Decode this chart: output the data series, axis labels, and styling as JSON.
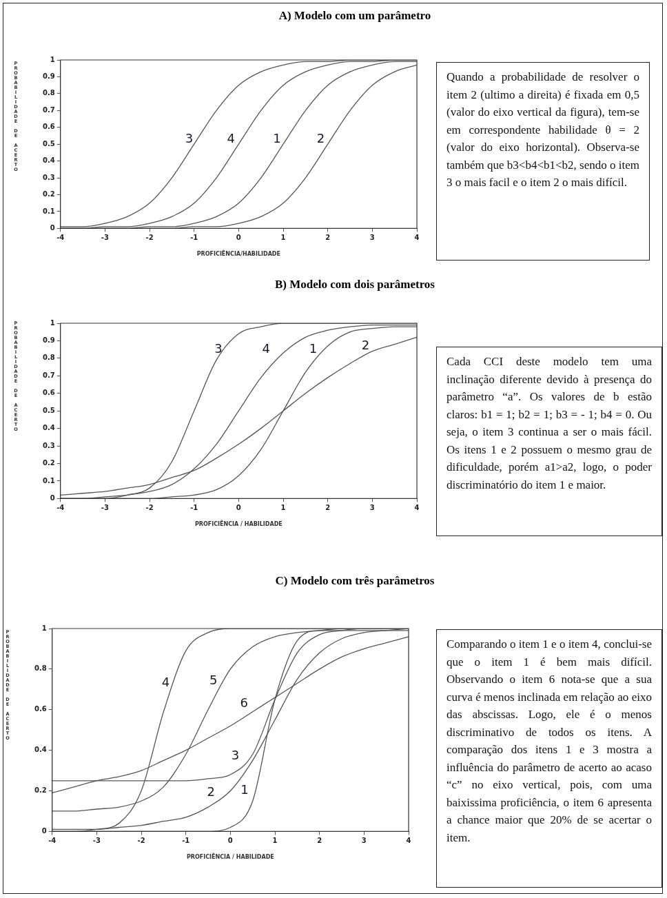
{
  "chart_data": [
    {
      "type": "line",
      "title": "A) Modelo com um parâmetro",
      "xlabel": "PROFICIÊNCIA/HABILIDADE",
      "ylabel": "PROBABILIDADE DE ACERTO",
      "x": [
        -4,
        -3.5,
        -3,
        -2.5,
        -2,
        -1.5,
        -1,
        -0.5,
        0,
        0.5,
        1,
        1.5,
        2,
        2.5,
        3,
        3.5,
        4
      ],
      "xlim": [
        -4,
        4
      ],
      "xticks": [
        -4,
        -3,
        -2,
        -1,
        0,
        1,
        2,
        3,
        4
      ],
      "ylim": [
        0,
        1
      ],
      "yticks": [
        0,
        0.1,
        0.2,
        0.3,
        0.4,
        0.5,
        0.6,
        0.7,
        0.8,
        0.9,
        1
      ],
      "grid": false,
      "legend": false,
      "marker": "none",
      "series": [
        {
          "name": "1",
          "color": "#555555",
          "values": [
            0,
            0,
            0,
            0,
            0.01,
            0.01,
            0.03,
            0.07,
            0.15,
            0.3,
            0.5,
            0.7,
            0.85,
            0.93,
            0.97,
            0.99,
            0.99
          ]
        },
        {
          "name": "2",
          "color": "#555555",
          "values": [
            0,
            0,
            0,
            0,
            0,
            0,
            0.01,
            0.01,
            0.03,
            0.07,
            0.15,
            0.3,
            0.5,
            0.7,
            0.85,
            0.93,
            0.97
          ]
        },
        {
          "name": "3",
          "color": "#555555",
          "values": [
            0.01,
            0.01,
            0.03,
            0.07,
            0.15,
            0.3,
            0.5,
            0.7,
            0.85,
            0.93,
            0.97,
            0.99,
            0.99,
            1,
            1,
            1,
            1
          ]
        },
        {
          "name": "4",
          "color": "#555555",
          "values": [
            0,
            0,
            0.01,
            0.01,
            0.03,
            0.07,
            0.15,
            0.3,
            0.5,
            0.7,
            0.85,
            0.93,
            0.97,
            0.99,
            0.99,
            1,
            1
          ]
        }
      ],
      "annotations": [
        "Quando a probabilidade de resolver o item 2 (ultimo a direita) é fixada em 0,5 (valor do eixo vertical da figura), tem-se em correspondente habilidade θ = 2 (valor do eixo horizontal). Observa-se também que b3<b4<b1<b2, sendo o item 3 o mais facil e o item 2 o mais difícil."
      ]
    },
    {
      "type": "line",
      "title": "B) Modelo com dois parâmetros",
      "xlabel": "PROFICIÊNCIA / HABILIDADE",
      "ylabel": "PROBABILIDADE DE ACERTO",
      "x": [
        -4,
        -3.5,
        -3,
        -2.5,
        -2,
        -1.5,
        -1,
        -0.5,
        0,
        0.5,
        1,
        1.5,
        2,
        2.5,
        3,
        3.5,
        4
      ],
      "xlim": [
        -4,
        4
      ],
      "xticks": [
        -4,
        -3,
        -2,
        -1,
        0,
        1,
        2,
        3,
        4
      ],
      "ylim": [
        0,
        1
      ],
      "yticks": [
        0,
        0.1,
        0.2,
        0.3,
        0.4,
        0.5,
        0.6,
        0.7,
        0.8,
        0.9,
        1
      ],
      "grid": false,
      "legend": false,
      "marker": "none",
      "series": [
        {
          "name": "1",
          "color": "#555555",
          "values": [
            0,
            0,
            0,
            0,
            0,
            0.01,
            0.02,
            0.05,
            0.13,
            0.28,
            0.5,
            0.72,
            0.87,
            0.95,
            0.97,
            0.98,
            0.98
          ]
        },
        {
          "name": "2",
          "color": "#555555",
          "values": [
            0.02,
            0.03,
            0.04,
            0.06,
            0.08,
            0.12,
            0.16,
            0.23,
            0.31,
            0.4,
            0.5,
            0.6,
            0.69,
            0.77,
            0.84,
            0.88,
            0.92
          ]
        },
        {
          "name": "3",
          "color": "#555555",
          "values": [
            0,
            0,
            0,
            0.02,
            0.06,
            0.21,
            0.5,
            0.79,
            0.94,
            0.98,
            1,
            1,
            1,
            1,
            1,
            1,
            1
          ]
        },
        {
          "name": "4",
          "color": "#555555",
          "values": [
            0,
            0,
            0.01,
            0.02,
            0.04,
            0.08,
            0.17,
            0.31,
            0.5,
            0.69,
            0.83,
            0.92,
            0.96,
            0.98,
            0.99,
            0.99,
            0.99
          ]
        }
      ],
      "annotations": [
        "Cada CCI deste modelo tem uma inclinação diferente devido à presença do parâmetro “a”. Os valores de b estão claros: b1 = 1; b2 = 1; b3 = - 1; b4 = 0. Ou seja, o item 3 continua a ser o mais fácil. Os itens 1 e 2 possuem o mesmo grau de dificuldade, porém a1>a2, logo, o poder discriminatório do item 1 e maior."
      ]
    },
    {
      "type": "line",
      "title": "C) Modelo com três parâmetros",
      "xlabel": "PROFICIÊNCIA / HABILIDADE",
      "ylabel": "PROBABILIDADE DE ACERTO",
      "x": [
        -4,
        -3.5,
        -3,
        -2.5,
        -2,
        -1.5,
        -1,
        -0.5,
        0,
        0.5,
        1,
        1.5,
        2,
        2.5,
        3,
        3.5,
        4
      ],
      "xlim": [
        -4,
        4
      ],
      "xticks": [
        -4,
        -3,
        -2,
        -1,
        0,
        1,
        2,
        3,
        4
      ],
      "ylim": [
        0,
        1
      ],
      "yticks": [
        0,
        0.2,
        0.4,
        0.6,
        0.8,
        1
      ],
      "grid": false,
      "legend": false,
      "marker": "none",
      "series": [
        {
          "name": "1",
          "color": "#555555",
          "values": [
            0,
            0,
            0,
            0,
            0,
            0,
            0,
            0,
            0.02,
            0.15,
            0.65,
            0.94,
            0.99,
            0.99,
            0.99,
            0.99,
            0.99
          ]
        },
        {
          "name": "2",
          "color": "#555555",
          "values": [
            0.01,
            0.01,
            0.01,
            0.02,
            0.03,
            0.05,
            0.07,
            0.12,
            0.2,
            0.35,
            0.55,
            0.75,
            0.88,
            0.95,
            0.98,
            0.99,
            1
          ]
        },
        {
          "name": "3",
          "color": "#555555",
          "values": [
            0.25,
            0.25,
            0.25,
            0.25,
            0.25,
            0.25,
            0.25,
            0.26,
            0.28,
            0.38,
            0.65,
            0.88,
            0.97,
            0.99,
            1,
            1,
            1
          ]
        },
        {
          "name": "4",
          "color": "#555555",
          "values": [
            0,
            0,
            0.01,
            0.04,
            0.2,
            0.59,
            0.89,
            0.98,
            1,
            1,
            1,
            1,
            1,
            1,
            1,
            1,
            1
          ]
        },
        {
          "name": "5",
          "color": "#555555",
          "values": [
            0.1,
            0.1,
            0.11,
            0.12,
            0.15,
            0.22,
            0.38,
            0.6,
            0.8,
            0.91,
            0.96,
            0.98,
            0.99,
            1,
            1,
            1,
            1
          ]
        },
        {
          "name": "6",
          "color": "#555555",
          "values": [
            0.19,
            0.22,
            0.25,
            0.27,
            0.3,
            0.35,
            0.4,
            0.46,
            0.52,
            0.59,
            0.66,
            0.73,
            0.8,
            0.86,
            0.9,
            0.93,
            0.96
          ]
        }
      ],
      "annotations": [
        "Comparando o item 1 e o item 4, conclui-se que o item 1 é bem mais difícil. Observando o item 6 nota-se que a sua curva é menos inclinada em relação ao eixo das abscissas. Logo, ele é o menos discriminativo de todos os itens. A comparação dos itens 1 e 3 mostra a influência do parâmetro de acerto ao acaso “c” no eixo vertical, pois, com uma baixissima proficiência, o item 6 apresenta a chance maior que 20% de se acertar o item."
      ]
    }
  ]
}
